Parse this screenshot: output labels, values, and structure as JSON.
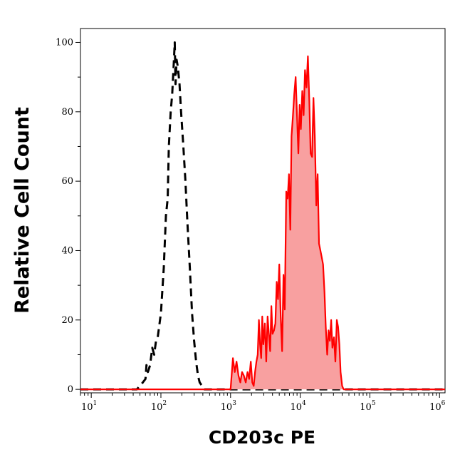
{
  "chart_data": {
    "type": "area",
    "title": "",
    "xlabel": "CD203c PE",
    "ylabel": "Relative Cell Count",
    "x_scale": "log",
    "xlim": [
      7,
      1200000
    ],
    "ylim": [
      -1,
      104
    ],
    "x_ticks": [
      {
        "value": 10,
        "base": "10",
        "exp": "1"
      },
      {
        "value": 100,
        "base": "10",
        "exp": "2"
      },
      {
        "value": 1000,
        "base": "10",
        "exp": "3"
      },
      {
        "value": 10000,
        "base": "10",
        "exp": "4"
      },
      {
        "value": 100000,
        "base": "10",
        "exp": "5"
      },
      {
        "value": 1000000,
        "base": "10",
        "exp": "6"
      }
    ],
    "y_ticks": [
      0,
      20,
      40,
      60,
      80,
      100
    ],
    "grid": false,
    "series": [
      {
        "style": "dashed-black",
        "filled": false,
        "color": "#000000",
        "points": [
          [
            7,
            0
          ],
          [
            45,
            0
          ],
          [
            50,
            1
          ],
          [
            55,
            2
          ],
          [
            60,
            3
          ],
          [
            62,
            7
          ],
          [
            65,
            5
          ],
          [
            70,
            7
          ],
          [
            75,
            12
          ],
          [
            80,
            10
          ],
          [
            85,
            14
          ],
          [
            90,
            15
          ],
          [
            100,
            22
          ],
          [
            110,
            35
          ],
          [
            118,
            50
          ],
          [
            125,
            55
          ],
          [
            130,
            70
          ],
          [
            138,
            80
          ],
          [
            145,
            85
          ],
          [
            152,
            93
          ],
          [
            158,
            100
          ],
          [
            162,
            88
          ],
          [
            168,
            95
          ],
          [
            175,
            93
          ],
          [
            185,
            88
          ],
          [
            195,
            80
          ],
          [
            210,
            70
          ],
          [
            225,
            60
          ],
          [
            240,
            48
          ],
          [
            260,
            35
          ],
          [
            280,
            22
          ],
          [
            300,
            14
          ],
          [
            320,
            8
          ],
          [
            340,
            4
          ],
          [
            360,
            2
          ],
          [
            390,
            1
          ],
          [
            420,
            0
          ],
          [
            1200000,
            0
          ]
        ]
      },
      {
        "style": "solid-red",
        "filled": true,
        "color": "#ff0000",
        "fill": "#f8a0a0",
        "points": [
          [
            7,
            0
          ],
          [
            1000,
            0
          ],
          [
            1080,
            9
          ],
          [
            1150,
            5
          ],
          [
            1220,
            8
          ],
          [
            1300,
            4
          ],
          [
            1380,
            2
          ],
          [
            1460,
            5
          ],
          [
            1550,
            4
          ],
          [
            1650,
            2
          ],
          [
            1750,
            5
          ],
          [
            1850,
            3
          ],
          [
            1950,
            8
          ],
          [
            2050,
            2
          ],
          [
            2150,
            1
          ],
          [
            2250,
            5
          ],
          [
            2350,
            8
          ],
          [
            2450,
            10
          ],
          [
            2550,
            20
          ],
          [
            2650,
            13
          ],
          [
            2750,
            9
          ],
          [
            2850,
            21
          ],
          [
            2950,
            13
          ],
          [
            3100,
            19
          ],
          [
            3250,
            8
          ],
          [
            3400,
            21
          ],
          [
            3550,
            16
          ],
          [
            3700,
            11
          ],
          [
            3850,
            24
          ],
          [
            4000,
            16
          ],
          [
            4200,
            17
          ],
          [
            4400,
            19
          ],
          [
            4600,
            31
          ],
          [
            4800,
            26
          ],
          [
            5000,
            36
          ],
          [
            5250,
            21
          ],
          [
            5500,
            11
          ],
          [
            5750,
            33
          ],
          [
            6000,
            23
          ],
          [
            6300,
            57
          ],
          [
            6600,
            55
          ],
          [
            6900,
            62
          ],
          [
            7200,
            46
          ],
          [
            7500,
            73
          ],
          [
            7800,
            78
          ],
          [
            8200,
            85
          ],
          [
            8600,
            90
          ],
          [
            9000,
            79
          ],
          [
            9400,
            68
          ],
          [
            9800,
            82
          ],
          [
            10200,
            75
          ],
          [
            10700,
            86
          ],
          [
            11200,
            79
          ],
          [
            11700,
            92
          ],
          [
            12300,
            87
          ],
          [
            12900,
            96
          ],
          [
            13500,
            83
          ],
          [
            14100,
            68
          ],
          [
            14800,
            67
          ],
          [
            15500,
            84
          ],
          [
            16200,
            73
          ],
          [
            17000,
            53
          ],
          [
            17800,
            62
          ],
          [
            18600,
            42
          ],
          [
            19500,
            40
          ],
          [
            20400,
            38
          ],
          [
            21300,
            36
          ],
          [
            22300,
            28
          ],
          [
            23300,
            18
          ],
          [
            24400,
            10
          ],
          [
            25500,
            17
          ],
          [
            26600,
            14
          ],
          [
            27800,
            20
          ],
          [
            29000,
            12
          ],
          [
            30500,
            15
          ],
          [
            32000,
            8
          ],
          [
            33500,
            20
          ],
          [
            35000,
            18
          ],
          [
            36500,
            13
          ],
          [
            38000,
            5
          ],
          [
            40000,
            1
          ],
          [
            42000,
            0
          ],
          [
            1200000,
            0
          ]
        ]
      }
    ]
  }
}
